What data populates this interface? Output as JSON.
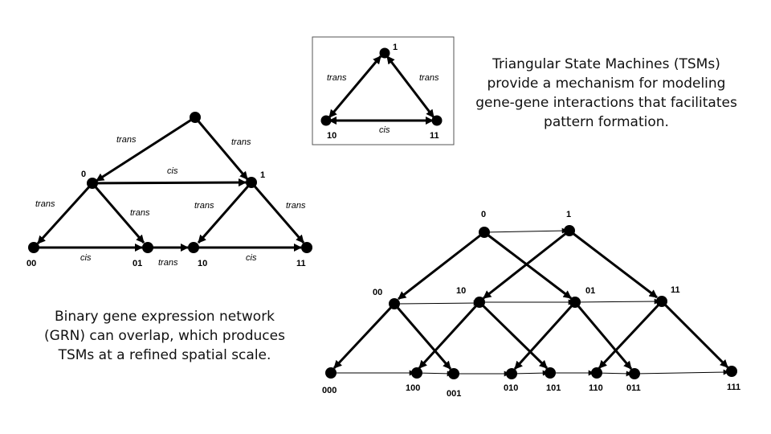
{
  "captions": {
    "tsm": "Triangular State Machines (TSMs) provide a mechanism for modeling gene-gene interactions that facilitates pattern formation.",
    "grn": "Binary gene expression network (GRN) can overlap, which produces TSMs at a refined spatial scale."
  },
  "edge_labels": {
    "trans": "trans",
    "cis": "cis"
  },
  "diagrams": {
    "inset_tsm": {
      "nodes": [
        "1",
        "10",
        "11"
      ],
      "edges": [
        {
          "from": "1",
          "to": "10",
          "label": "trans",
          "bidirectional": true
        },
        {
          "from": "1",
          "to": "11",
          "label": "trans",
          "bidirectional": true
        },
        {
          "from": "10",
          "to": "11",
          "label": "cis",
          "bidirectional": true
        }
      ]
    },
    "left_grn": {
      "nodes": [
        "0",
        "1",
        "00",
        "01",
        "10",
        "11"
      ],
      "edges": [
        {
          "from": "root",
          "to": "0",
          "label": "trans"
        },
        {
          "from": "root",
          "to": "1",
          "label": "trans"
        },
        {
          "from": "0",
          "to": "1",
          "label": "cis"
        },
        {
          "from": "0",
          "to": "00",
          "label": "trans"
        },
        {
          "from": "0",
          "to": "01",
          "label": "trans"
        },
        {
          "from": "1",
          "to": "10",
          "label": "trans"
        },
        {
          "from": "1",
          "to": "11",
          "label": "trans"
        },
        {
          "from": "00",
          "to": "01",
          "label": "cis"
        },
        {
          "from": "01",
          "to": "10",
          "label": "trans"
        },
        {
          "from": "10",
          "to": "11",
          "label": "cis"
        }
      ]
    },
    "right_grn": {
      "nodes": [
        "0",
        "1",
        "00",
        "10",
        "01",
        "11",
        "000",
        "100",
        "001",
        "010",
        "101",
        "110",
        "011",
        "111"
      ]
    }
  }
}
